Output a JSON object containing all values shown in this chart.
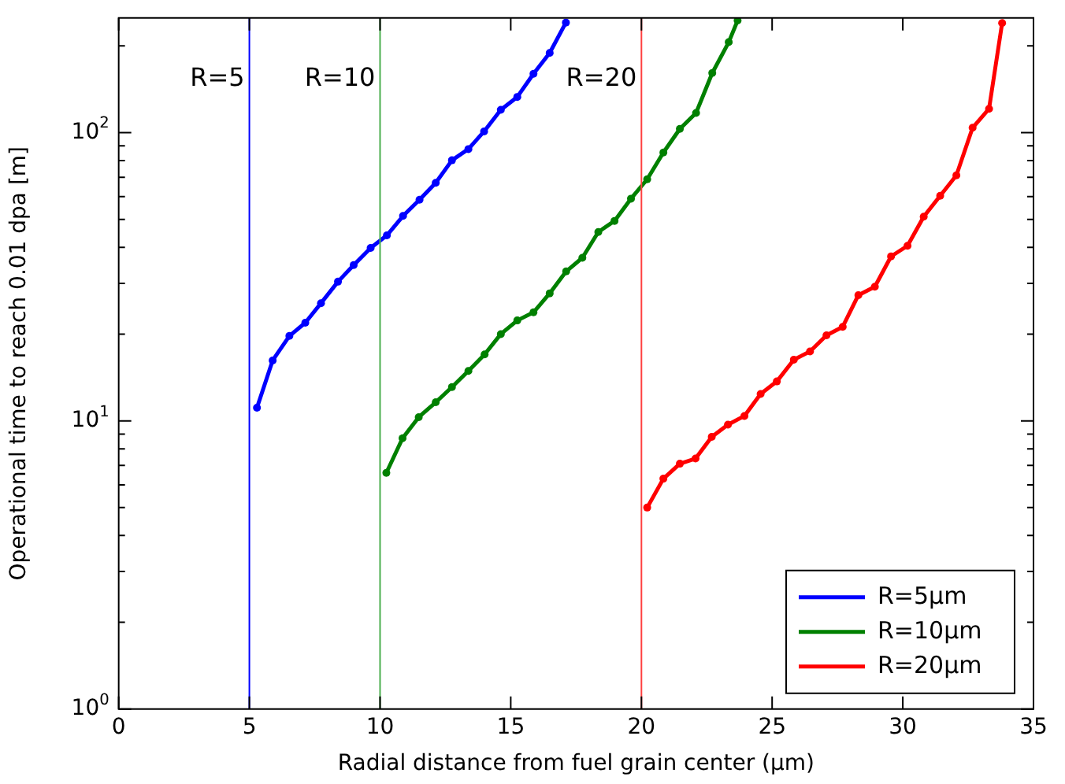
{
  "chart_data": {
    "type": "line",
    "xlabel": "Radial distance from fuel grain center (μm)",
    "ylabel": "Operational time to reach 0.01 dpa [m]",
    "xlim": [
      0,
      35
    ],
    "xticks": [
      0,
      5,
      10,
      15,
      20,
      25,
      30,
      35
    ],
    "ylim": [
      1,
      250
    ],
    "log": true,
    "yticks": [
      {
        "value": 1,
        "label": "10$^{0}$"
      },
      {
        "value": 2,
        "label": null
      },
      {
        "value": 3,
        "label": null
      },
      {
        "value": 4,
        "label": null
      },
      {
        "value": 5,
        "label": null
      },
      {
        "value": 6,
        "label": null
      },
      {
        "value": 7,
        "label": null
      },
      {
        "value": 8,
        "label": null
      },
      {
        "value": 9,
        "label": null
      },
      {
        "value": 10,
        "label": "10$^{1}$"
      },
      {
        "value": 20,
        "label": null
      },
      {
        "value": 30,
        "label": null
      },
      {
        "value": 40,
        "label": null
      },
      {
        "value": 50,
        "label": null
      },
      {
        "value": 60,
        "label": null
      },
      {
        "value": 70,
        "label": null
      },
      {
        "value": 80,
        "label": null
      },
      {
        "value": 90,
        "label": null
      },
      {
        "value": 100,
        "label": "10$^{2}$"
      },
      {
        "value": 200,
        "label": null
      }
    ],
    "grid": false,
    "legend": "bottom right",
    "marker": "circle",
    "line_style": "solid",
    "series": [
      {
        "name": "R=5μm",
        "color": "#0000ff",
        "x": [
          5.29,
          5.89,
          6.53,
          7.14,
          7.74,
          8.39,
          8.99,
          9.64,
          10.26,
          10.88,
          11.51,
          12.13,
          12.75,
          13.38,
          13.98,
          14.62,
          15.25,
          15.87,
          16.49,
          17.11
        ],
        "values": [
          11.1,
          16.2,
          19.7,
          21.9,
          25.6,
          30.4,
          34.7,
          39.8,
          44.0,
          51.4,
          58.5,
          67.0,
          80.2,
          87.7,
          101,
          120,
          133,
          160,
          189,
          241
        ]
      },
      {
        "name": "R=10μm",
        "color": "#008000",
        "x": [
          10.24,
          10.86,
          11.48,
          12.13,
          12.75,
          13.38,
          14.0,
          14.62,
          15.25,
          15.87,
          16.49,
          17.12,
          17.74,
          18.35,
          18.97,
          19.6,
          20.22,
          20.84,
          21.47,
          22.09,
          22.71,
          23.34,
          23.68
        ],
        "values": [
          6.6,
          8.7,
          10.3,
          11.6,
          13.1,
          14.9,
          17.0,
          20.0,
          22.3,
          23.8,
          27.7,
          33.0,
          36.8,
          45.2,
          49.4,
          59.0,
          68.9,
          85.3,
          103,
          117,
          161,
          206,
          245
        ]
      },
      {
        "name": "R=20μm",
        "color": "#ff0000",
        "x": [
          20.22,
          20.84,
          21.47,
          22.07,
          22.69,
          23.31,
          23.94,
          24.56,
          25.18,
          25.83,
          26.45,
          27.08,
          27.7,
          28.3,
          28.93,
          29.55,
          30.18,
          30.8,
          31.43,
          32.05,
          32.67,
          33.3,
          33.8
        ],
        "values": [
          5.0,
          6.3,
          7.1,
          7.4,
          8.8,
          9.7,
          10.4,
          12.4,
          13.7,
          16.3,
          17.4,
          19.8,
          21.2,
          27.3,
          29.2,
          37.2,
          40.5,
          51.1,
          60.4,
          71.1,
          104,
          121,
          240
        ]
      }
    ],
    "ref_lines": [
      {
        "axis": "x",
        "value": 5,
        "label": "R=5",
        "color": "#0000ff"
      },
      {
        "axis": "x",
        "value": 10,
        "label": "R=10",
        "color": "#4caf50"
      },
      {
        "axis": "x",
        "value": 20,
        "label": "R=20",
        "color": "#ff4040"
      }
    ]
  }
}
